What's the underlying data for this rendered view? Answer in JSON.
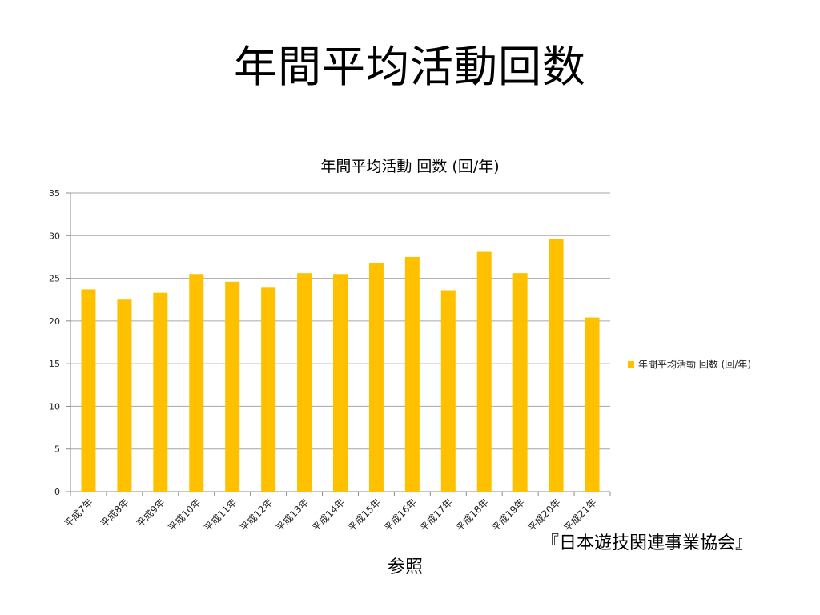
{
  "slide": {
    "title": "年間平均活動回数",
    "source_line1": "『日本遊技関連事業協会』",
    "source_line2": "参照"
  },
  "chart_data": {
    "type": "bar",
    "title": "年間平均活動 回数 (回/年)",
    "categories": [
      "平成7年",
      "平成8年",
      "平成9年",
      "平成10年",
      "平成11年",
      "平成12年",
      "平成13年",
      "平成14年",
      "平成15年",
      "平成16年",
      "平成17年",
      "平成18年",
      "平成19年",
      "平成20年",
      "平成21年"
    ],
    "series": [
      {
        "name": "年間平均活動 回数 (回/年)",
        "color": "#ffc000",
        "values": [
          23.7,
          22.5,
          23.3,
          25.5,
          24.6,
          23.9,
          25.6,
          25.5,
          26.8,
          27.5,
          23.6,
          28.1,
          25.6,
          29.6,
          20.4
        ]
      }
    ],
    "ylim": [
      0,
      35
    ],
    "yticks": [
      0,
      5,
      10,
      15,
      20,
      25,
      30,
      35
    ],
    "grid": true,
    "legend": "right"
  }
}
